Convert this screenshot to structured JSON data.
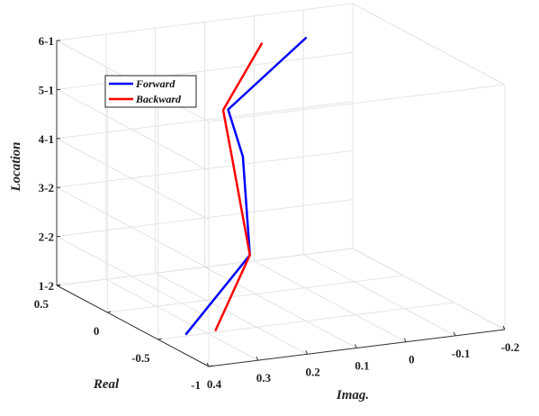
{
  "chart_data": {
    "type": "line",
    "dimensions": "3d",
    "title": "",
    "xlabel": "Imag.",
    "ylabel": "Real",
    "zlabel": "Location",
    "xlim": [
      -0.2,
      0.4
    ],
    "ylim": [
      -1,
      0.5
    ],
    "xticks": [
      {
        "value": 0.4,
        "label": "0.4"
      },
      {
        "value": 0.3,
        "label": "0.3"
      },
      {
        "value": 0.2,
        "label": "0.2"
      },
      {
        "value": 0.1,
        "label": "0.1"
      },
      {
        "value": 0,
        "label": "0"
      },
      {
        "value": -0.1,
        "label": "-0.1"
      },
      {
        "value": -0.2,
        "label": "-0.2"
      }
    ],
    "yticks": [
      {
        "value": 0.5,
        "label": "0.5"
      },
      {
        "value": 0,
        "label": "0"
      },
      {
        "value": -0.5,
        "label": "-0.5"
      },
      {
        "value": -1,
        "label": "-1"
      }
    ],
    "zcategories": [
      "1-2",
      "2-2",
      "3-2",
      "4-1",
      "5-1",
      "6-1"
    ],
    "grid": true,
    "legend": "top-left",
    "series": [
      {
        "name": "Forward",
        "color": "#0000ff",
        "points": [
          {
            "imag": 0.34,
            "real": -0.48,
            "location": "1-2"
          },
          {
            "imag": 0.14,
            "real": -0.14,
            "location": "2-2"
          },
          {
            "imag": 0.15,
            "real": -0.12,
            "location": "4-1"
          },
          {
            "imag": 0.18,
            "real": -0.12,
            "location": "5-1"
          },
          {
            "imag": -0.02,
            "real": 0.08,
            "location": "6-1"
          }
        ]
      },
      {
        "name": "Backward",
        "color": "#ff0000",
        "points": [
          {
            "imag": 0.28,
            "real": -0.48,
            "location": "1-2"
          },
          {
            "imag": 0.14,
            "real": -0.14,
            "location": "2-2"
          },
          {
            "imag": 0.17,
            "real": -0.11,
            "location": "4-1"
          },
          {
            "imag": 0.19,
            "real": -0.12,
            "location": "5-1"
          },
          {
            "imag": 0.07,
            "real": 0.08,
            "location": "6-1"
          }
        ]
      }
    ]
  }
}
